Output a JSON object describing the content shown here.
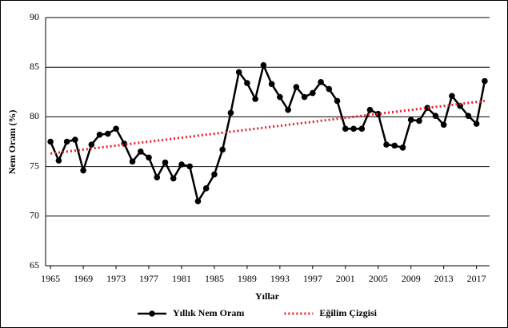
{
  "chart_data": {
    "type": "line",
    "y_label": "Nem Oranı (%)",
    "x_label": "Yıllar",
    "x": [
      1965,
      1966,
      1967,
      1968,
      1969,
      1970,
      1971,
      1972,
      1973,
      1974,
      1975,
      1976,
      1977,
      1978,
      1979,
      1980,
      1981,
      1982,
      1983,
      1984,
      1985,
      1986,
      1987,
      1988,
      1989,
      1990,
      1991,
      1992,
      1993,
      1994,
      1995,
      1996,
      1997,
      1998,
      1999,
      2000,
      2001,
      2002,
      2003,
      2004,
      2005,
      2006,
      2007,
      2008,
      2009,
      2010,
      2011,
      2012,
      2013,
      2014,
      2015,
      2016,
      2017,
      2018
    ],
    "series": [
      {
        "name": "Yıllık Nem Oranı",
        "color": "#000000",
        "marker": "circle",
        "values": [
          77.5,
          75.6,
          77.5,
          77.7,
          74.6,
          77.2,
          78.2,
          78.3,
          78.8,
          77.3,
          75.5,
          76.5,
          75.9,
          73.9,
          75.4,
          73.8,
          75.2,
          75.0,
          71.5,
          72.8,
          74.2,
          76.7,
          80.4,
          84.5,
          83.4,
          81.8,
          85.2,
          83.3,
          82.0,
          80.7,
          83.0,
          82.0,
          82.4,
          83.5,
          82.8,
          81.6,
          78.8,
          78.8,
          78.8,
          80.7,
          80.3,
          77.2,
          77.1,
          76.9,
          79.7,
          79.6,
          80.9,
          80.1,
          79.2,
          82.1,
          81.1,
          80.1,
          79.3,
          83.6
        ]
      },
      {
        "name": "Eğilim Çizgisi",
        "color": "#e8202a",
        "dash": "dotted",
        "x": [
          1965,
          2018
        ],
        "values": [
          76.3,
          81.6
        ]
      }
    ],
    "xlim": [
      1964.4,
      2018.6
    ],
    "xticks": [
      1965,
      1969,
      1973,
      1977,
      1981,
      1985,
      1989,
      1993,
      1997,
      2001,
      2005,
      2009,
      2013,
      2017
    ],
    "ylim": [
      65,
      90
    ],
    "yticks": [
      65,
      70,
      75,
      80,
      85,
      90
    ],
    "grid": true,
    "legend": "bottom"
  }
}
